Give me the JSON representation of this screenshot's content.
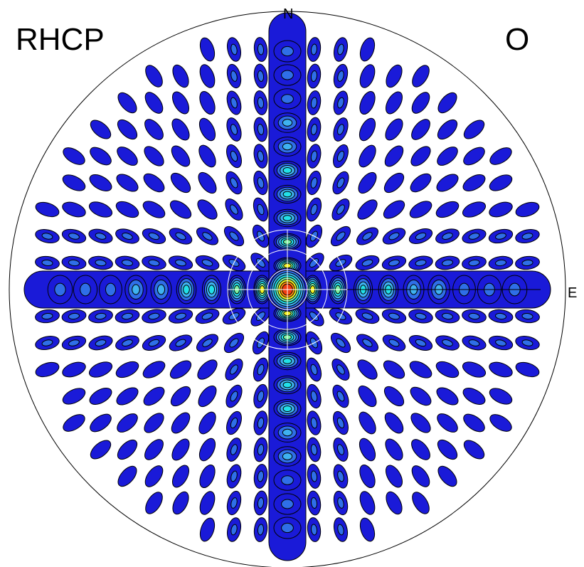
{
  "labels": {
    "polarization": "RHCP",
    "corner": "O",
    "north": "N",
    "east": "E",
    "title_fragment": ""
  },
  "colors": {
    "level1": "#1a1ad8",
    "level2": "#2f6fe8",
    "level3": "#3fb2f0",
    "level4": "#22e0e8",
    "level5": "#7df0a0",
    "level6": "#f0f020",
    "level7": "#ff8a10",
    "level8": "#ee3a10",
    "outline": "#000000",
    "grid": "#ffffff",
    "boundary": "#000000"
  }
}
